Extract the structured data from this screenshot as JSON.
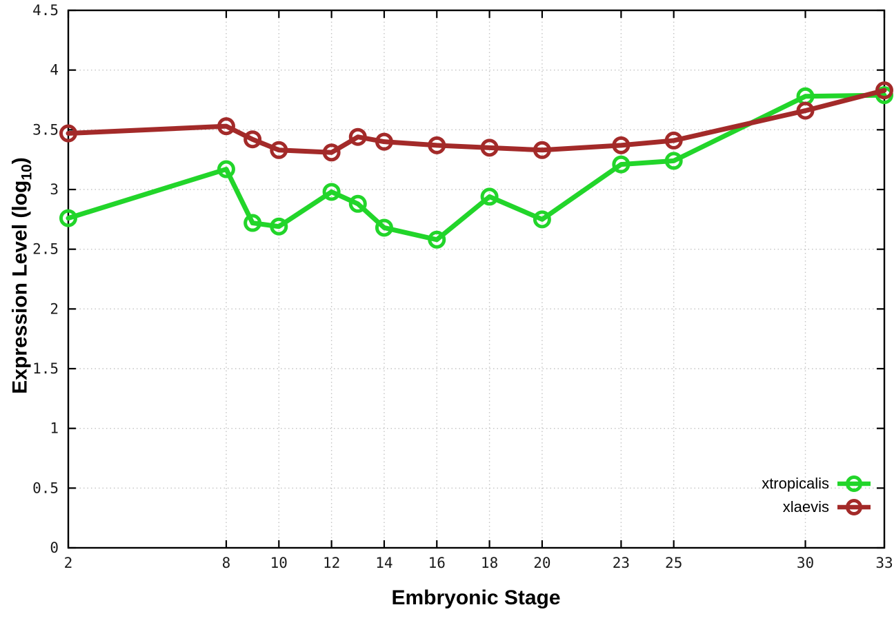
{
  "figure": {
    "background": "#ffffff",
    "xlabel": "Embryonic Stage",
    "ylabel": "Expression Level (log10)",
    "ylabel_prefix": "Expression Level (log",
    "ylabel_sub": "10",
    "ylabel_suffix": ")"
  },
  "chart_data": {
    "type": "line",
    "title": "",
    "xlabel": "Embryonic Stage",
    "ylabel": "Expression Level (log10)",
    "x": [
      2,
      8,
      9,
      10,
      12,
      13,
      14,
      16,
      18,
      20,
      23,
      25,
      30,
      33
    ],
    "series": [
      {
        "name": "xtropicalis",
        "color": "#22d52a",
        "values": [
          2.76,
          3.17,
          2.72,
          2.69,
          2.98,
          2.88,
          2.68,
          2.58,
          2.94,
          2.75,
          3.21,
          3.24,
          3.78,
          3.79
        ]
      },
      {
        "name": "xlaevis",
        "color": "#a32a29",
        "values": [
          3.47,
          3.53,
          3.42,
          3.33,
          3.31,
          3.44,
          3.4,
          3.37,
          3.35,
          3.33,
          3.37,
          3.41,
          3.66,
          3.83
        ]
      }
    ],
    "xlim": [
      2,
      33
    ],
    "ylim": [
      0,
      4.5
    ],
    "xtick_labels": [
      "2",
      "8",
      "10",
      "12",
      "14",
      "16",
      "18",
      "20",
      "23",
      "25",
      "30",
      "33"
    ],
    "ytick_labels": [
      "0",
      "0.5",
      "1",
      "1.5",
      "2",
      "2.5",
      "3",
      "3.5",
      "4",
      "4.5"
    ],
    "grid": true,
    "grid_color": "#c3c3c3",
    "axis_color": "#000000",
    "tick_label_color": "#1a1a1a",
    "marker": "open-circle",
    "legend_position": "inside-bottom-right",
    "legend": [
      "xtropicalis",
      "xlaevis"
    ]
  }
}
